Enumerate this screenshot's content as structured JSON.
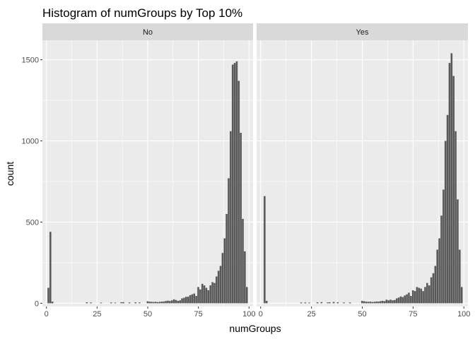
{
  "chart_data": {
    "type": "bar",
    "title": "Histogram of numGroups by Top 10%",
    "xlabel": "numGroups",
    "ylabel": "count",
    "xlim": [
      -2,
      102
    ],
    "ylim": [
      -20,
      1620
    ],
    "x_ticks": [
      0,
      25,
      50,
      75,
      100
    ],
    "y_ticks": [
      0,
      500,
      1000,
      1500
    ],
    "grid": true,
    "bar_color": "#595959",
    "panel_background": "#ebebeb",
    "strip_background": "#d9d9d9",
    "bin_width": 1,
    "panels": [
      {
        "label": "No",
        "bins": [
          [
            1,
            95
          ],
          [
            2,
            440
          ],
          [
            3,
            10
          ],
          [
            20,
            6
          ],
          [
            22,
            5
          ],
          [
            27,
            4
          ],
          [
            32,
            5
          ],
          [
            34,
            4
          ],
          [
            37,
            6
          ],
          [
            38,
            7
          ],
          [
            41,
            5
          ],
          [
            44,
            6
          ],
          [
            46,
            5
          ],
          [
            50,
            12
          ],
          [
            51,
            10
          ],
          [
            52,
            9
          ],
          [
            53,
            8
          ],
          [
            54,
            9
          ],
          [
            55,
            7
          ],
          [
            56,
            9
          ],
          [
            57,
            10
          ],
          [
            58,
            11
          ],
          [
            59,
            14
          ],
          [
            60,
            16
          ],
          [
            61,
            14
          ],
          [
            62,
            18
          ],
          [
            63,
            24
          ],
          [
            64,
            20
          ],
          [
            65,
            15
          ],
          [
            66,
            18
          ],
          [
            67,
            30
          ],
          [
            68,
            34
          ],
          [
            69,
            40
          ],
          [
            70,
            40
          ],
          [
            71,
            50
          ],
          [
            72,
            55
          ],
          [
            73,
            60
          ],
          [
            74,
            45
          ],
          [
            75,
            100
          ],
          [
            76,
            85
          ],
          [
            77,
            120
          ],
          [
            78,
            110
          ],
          [
            79,
            95
          ],
          [
            80,
            80
          ],
          [
            81,
            110
          ],
          [
            82,
            130
          ],
          [
            83,
            125
          ],
          [
            84,
            165
          ],
          [
            85,
            200
          ],
          [
            86,
            230
          ],
          [
            87,
            310
          ],
          [
            88,
            400
          ],
          [
            89,
            550
          ],
          [
            90,
            770
          ],
          [
            91,
            1060
          ],
          [
            92,
            1470
          ],
          [
            93,
            1480
          ],
          [
            94,
            1490
          ],
          [
            95,
            1370
          ],
          [
            96,
            1050
          ],
          [
            97,
            520
          ],
          [
            98,
            320
          ],
          [
            99,
            100
          ]
        ]
      },
      {
        "label": "Yes",
        "bins": [
          [
            2,
            660
          ],
          [
            3,
            15
          ],
          [
            20,
            5
          ],
          [
            22,
            5
          ],
          [
            24,
            4
          ],
          [
            28,
            6
          ],
          [
            30,
            7
          ],
          [
            33,
            5
          ],
          [
            34,
            6
          ],
          [
            36,
            8
          ],
          [
            38,
            6
          ],
          [
            41,
            5
          ],
          [
            44,
            5
          ],
          [
            50,
            15
          ],
          [
            51,
            12
          ],
          [
            52,
            10
          ],
          [
            53,
            9
          ],
          [
            54,
            10
          ],
          [
            55,
            8
          ],
          [
            56,
            9
          ],
          [
            57,
            11
          ],
          [
            58,
            10
          ],
          [
            59,
            13
          ],
          [
            60,
            15
          ],
          [
            61,
            13
          ],
          [
            62,
            22
          ],
          [
            63,
            18
          ],
          [
            64,
            22
          ],
          [
            65,
            18
          ],
          [
            66,
            20
          ],
          [
            67,
            30
          ],
          [
            68,
            35
          ],
          [
            69,
            42
          ],
          [
            70,
            38
          ],
          [
            71,
            48
          ],
          [
            72,
            55
          ],
          [
            73,
            65
          ],
          [
            74,
            45
          ],
          [
            75,
            80
          ],
          [
            76,
            75
          ],
          [
            77,
            100
          ],
          [
            78,
            95
          ],
          [
            79,
            90
          ],
          [
            80,
            75
          ],
          [
            81,
            100
          ],
          [
            82,
            125
          ],
          [
            83,
            110
          ],
          [
            84,
            160
          ],
          [
            85,
            185
          ],
          [
            86,
            230
          ],
          [
            87,
            330
          ],
          [
            88,
            400
          ],
          [
            89,
            540
          ],
          [
            90,
            700
          ],
          [
            91,
            1000
          ],
          [
            92,
            1160
          ],
          [
            93,
            1480
          ],
          [
            94,
            1540
          ],
          [
            95,
            1400
          ],
          [
            96,
            1060
          ],
          [
            97,
            640
          ],
          [
            98,
            330
          ],
          [
            99,
            100
          ]
        ]
      }
    ]
  }
}
